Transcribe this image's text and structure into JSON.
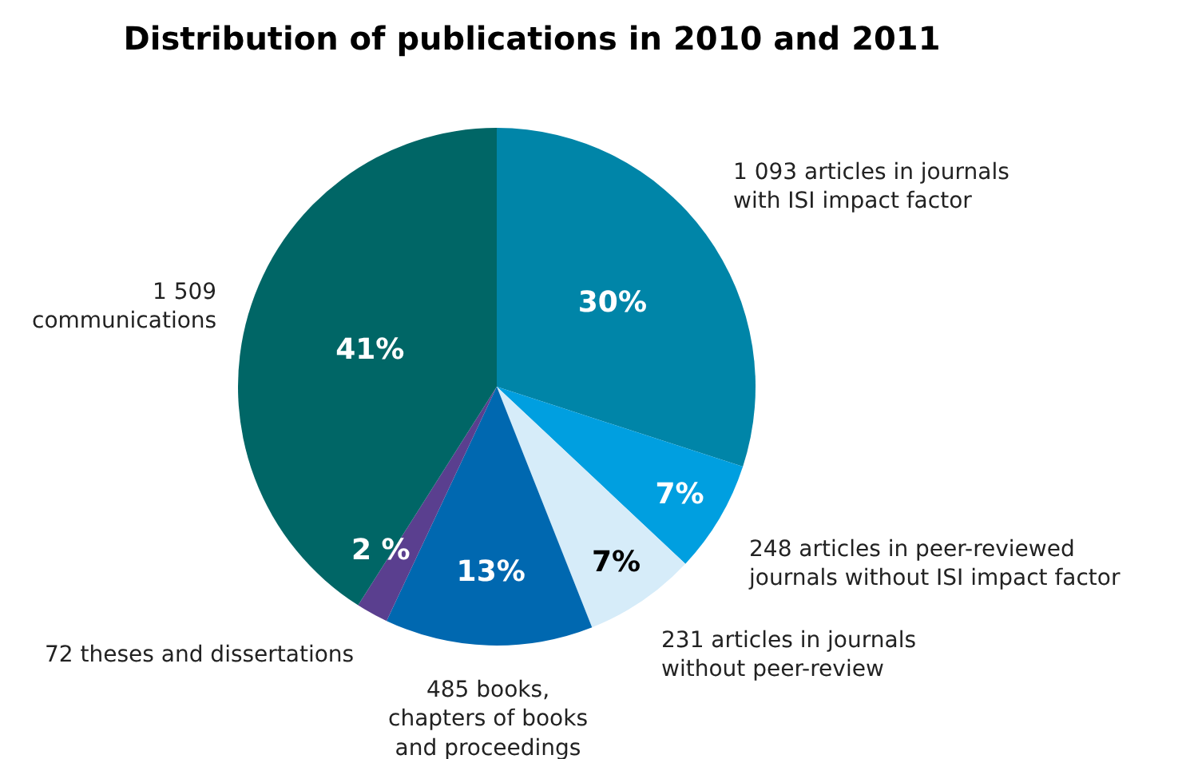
{
  "chart_data": {
    "type": "pie",
    "title": "Distribution of publications in 2010 and 2011",
    "categories": [
      "1 093 articles in journals\nwith ISI impact factor",
      "248 articles in peer-reviewed\njournals without ISI impact factor",
      "231 articles in journals\nwithout peer-review",
      "485 books,\nchapters of books\nand proceedings",
      "72 theses and dissertations",
      "1 509\ncommunications"
    ],
    "values": [
      30,
      7,
      7,
      13,
      2,
      41
    ],
    "value_labels": [
      "30%",
      "7%",
      "7%",
      "13%",
      "2 %",
      "41%"
    ],
    "colors": [
      "#0085a8",
      "#009fe0",
      "#d6ecf9",
      "#0068b0",
      "#5a3f8f",
      "#006666"
    ],
    "legend": false
  }
}
